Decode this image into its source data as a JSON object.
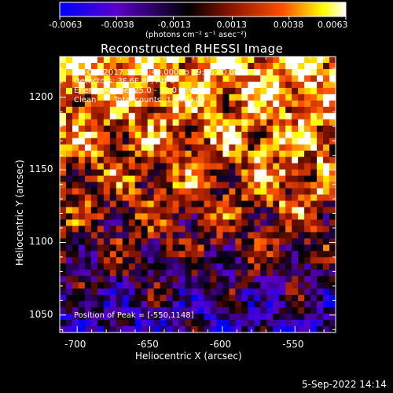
{
  "colorbar": {
    "ticks": [
      "-0.0063",
      "-0.0038",
      "-0.0013",
      "0.0013",
      "0.0038",
      "0.0063"
    ],
    "tick_values": [
      -0.0063,
      -0.0038,
      -0.0013,
      0.0013,
      0.0038,
      0.0063
    ],
    "unit_label": "(photons cm⁻² s⁻¹ asec⁻²)",
    "colormap": [
      "#0000ff",
      "#5a00c8",
      "#000000",
      "#8c1400",
      "#ff5000",
      "#ffff00",
      "#ffffff"
    ]
  },
  "plot": {
    "title": "Reconstructed RHESSI Image",
    "annotations": {
      "time_range": "17-Oct-2017 19:35:40.000 to 19:36:40.000",
      "detectors": "Detectors: 3F 6F 8F, Att 0",
      "energy_range": "Energy Range: 25.0 - 50.0 keV",
      "method": "Clean",
      "total_counts": "Total counts: 1.45E+03",
      "peak_position": "Position of Peak = [-550,1148]"
    },
    "footer_date": "5-Sep-2022 14:14"
  },
  "chart_data": {
    "type": "heatmap",
    "title": "Reconstructed RHESSI Image",
    "xlabel": "Heliocentric X (arcsec)",
    "ylabel": "Heliocentric Y (arcsec)",
    "xlim": [
      -712,
      -522
    ],
    "ylim": [
      1038,
      1228
    ],
    "xticks": [
      -700,
      -650,
      -600,
      -550
    ],
    "xtick_labels": [
      "-700",
      "-650",
      "-600",
      "-550"
    ],
    "yticks": [
      1050,
      1100,
      1150,
      1200
    ],
    "ytick_labels": [
      "1050",
      "1100",
      "1150",
      "1200"
    ],
    "zlim": [
      -0.0063,
      0.0063
    ],
    "zunit": "photons cm^-2 s^-1 asec^-2",
    "peak": [
      -550,
      1148
    ],
    "grid": false
  }
}
